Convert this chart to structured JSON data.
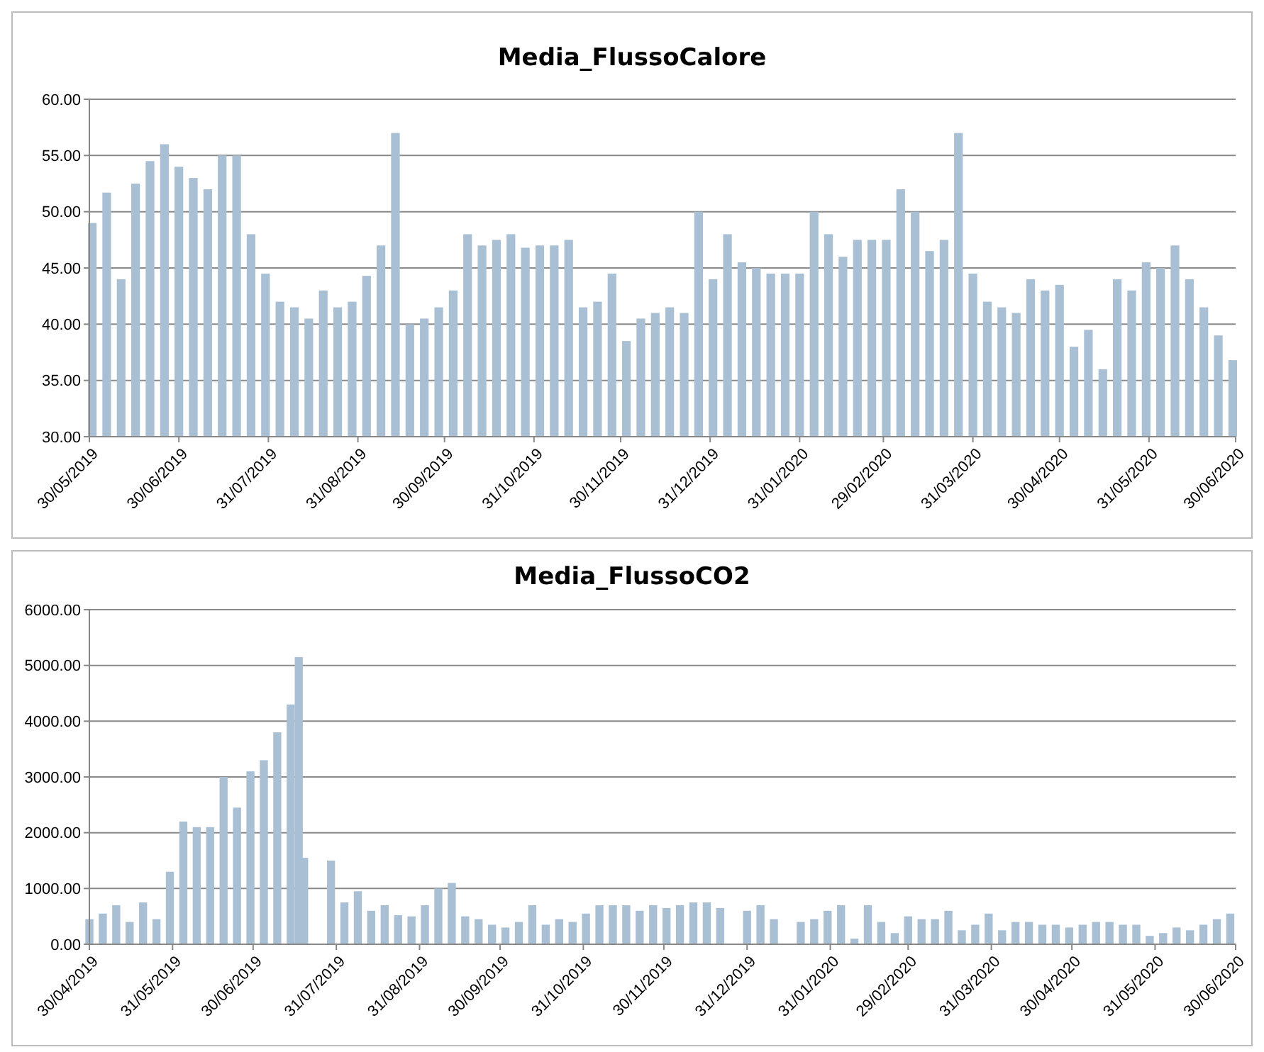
{
  "chart_data": [
    {
      "type": "bar",
      "title": "Media_FlussoCalore",
      "color": "#a9bfd3",
      "grid": "y",
      "xlim": [
        "2019-05-30",
        "2020-06-30"
      ],
      "xticks": [
        {
          "value": "2019-05-30",
          "label": "30/05/2019"
        },
        {
          "value": "2019-06-30",
          "label": "30/06/2019"
        },
        {
          "value": "2019-07-31",
          "label": "31/07/2019"
        },
        {
          "value": "2019-08-31",
          "label": "31/08/2019"
        },
        {
          "value": "2019-09-30",
          "label": "30/09/2019"
        },
        {
          "value": "2019-10-31",
          "label": "31/10/2019"
        },
        {
          "value": "2019-11-30",
          "label": "30/11/2019"
        },
        {
          "value": "2019-12-31",
          "label": "31/12/2019"
        },
        {
          "value": "2020-01-31",
          "label": "31/01/2020"
        },
        {
          "value": "2020-02-29",
          "label": "29/02/2020"
        },
        {
          "value": "2020-03-31",
          "label": "31/03/2020"
        },
        {
          "value": "2020-04-30",
          "label": "30/04/2020"
        },
        {
          "value": "2020-05-31",
          "label": "31/05/2020"
        },
        {
          "value": "2020-06-30",
          "label": "30/06/2020"
        }
      ],
      "ylim": [
        30,
        60
      ],
      "yticks": [
        {
          "value": 30,
          "label": "30.00"
        },
        {
          "value": 35,
          "label": "35.00"
        },
        {
          "value": 40,
          "label": "40.00"
        },
        {
          "value": 45,
          "label": "45.00"
        },
        {
          "value": 50,
          "label": "50.00"
        },
        {
          "value": 55,
          "label": "55.00"
        },
        {
          "value": 60,
          "label": "60.00"
        }
      ],
      "x": [
        "2019-05-31",
        "2019-06-05",
        "2019-06-10",
        "2019-06-15",
        "2019-06-20",
        "2019-06-25",
        "2019-06-30",
        "2019-07-05",
        "2019-07-10",
        "2019-07-15",
        "2019-07-20",
        "2019-07-25",
        "2019-07-30",
        "2019-08-04",
        "2019-08-09",
        "2019-08-14",
        "2019-08-19",
        "2019-08-24",
        "2019-08-29",
        "2019-09-03",
        "2019-09-08",
        "2019-09-13",
        "2019-09-18",
        "2019-09-23",
        "2019-09-28",
        "2019-10-03",
        "2019-10-08",
        "2019-10-13",
        "2019-10-18",
        "2019-10-23",
        "2019-10-28",
        "2019-11-02",
        "2019-11-07",
        "2019-11-12",
        "2019-11-17",
        "2019-11-22",
        "2019-11-27",
        "2019-12-02",
        "2019-12-07",
        "2019-12-12",
        "2019-12-17",
        "2019-12-22",
        "2019-12-27",
        "2020-01-01",
        "2020-01-06",
        "2020-01-11",
        "2020-01-16",
        "2020-01-21",
        "2020-01-26",
        "2020-01-31",
        "2020-02-05",
        "2020-02-10",
        "2020-02-15",
        "2020-02-20",
        "2020-02-25",
        "2020-03-01",
        "2020-03-06",
        "2020-03-11",
        "2020-03-16",
        "2020-03-21",
        "2020-03-26",
        "2020-03-31",
        "2020-04-05",
        "2020-04-10",
        "2020-04-15",
        "2020-04-20",
        "2020-04-25",
        "2020-04-30",
        "2020-05-05",
        "2020-05-10",
        "2020-05-15",
        "2020-05-20",
        "2020-05-25",
        "2020-05-30",
        "2020-06-04",
        "2020-06-09",
        "2020-06-14",
        "2020-06-19",
        "2020-06-24",
        "2020-06-29"
      ],
      "values": [
        49,
        51.7,
        44,
        52.5,
        54.5,
        56,
        54,
        53,
        52,
        55,
        55,
        48,
        44.5,
        42,
        41.5,
        40.5,
        43,
        41.5,
        42,
        44.3,
        47,
        57,
        40,
        40.5,
        41.5,
        43,
        48,
        47,
        47.5,
        48,
        46.8,
        47,
        47,
        47.5,
        41.5,
        42,
        44.5,
        38.5,
        40.5,
        41,
        41.5,
        41,
        50,
        44,
        48,
        45.5,
        45,
        44.5,
        44.5,
        44.5,
        50,
        48,
        46,
        47.5,
        47.5,
        47.5,
        52,
        50,
        46.5,
        47.5,
        57,
        44.5,
        42,
        41.5,
        41,
        44,
        43,
        43.5,
        38,
        39.5,
        36,
        44,
        43,
        45.5,
        45,
        47,
        44,
        41.5,
        39,
        36.8
      ]
    },
    {
      "type": "bar",
      "title": "Media_FlussoCO2",
      "color": "#a9bfd3",
      "grid": "y",
      "xlim": [
        "2019-04-30",
        "2020-06-30"
      ],
      "xticks": [
        {
          "value": "2019-04-30",
          "label": "30/04/2019"
        },
        {
          "value": "2019-05-31",
          "label": "31/05/2019"
        },
        {
          "value": "2019-06-30",
          "label": "30/06/2019"
        },
        {
          "value": "2019-07-31",
          "label": "31/07/2019"
        },
        {
          "value": "2019-08-31",
          "label": "31/08/2019"
        },
        {
          "value": "2019-09-30",
          "label": "30/09/2019"
        },
        {
          "value": "2019-10-31",
          "label": "31/10/2019"
        },
        {
          "value": "2019-11-30",
          "label": "30/11/2019"
        },
        {
          "value": "2019-12-31",
          "label": "31/12/2019"
        },
        {
          "value": "2020-01-31",
          "label": "31/01/2020"
        },
        {
          "value": "2020-02-29",
          "label": "29/02/2020"
        },
        {
          "value": "2020-03-31",
          "label": "31/03/2020"
        },
        {
          "value": "2020-04-30",
          "label": "30/04/2020"
        },
        {
          "value": "2020-05-31",
          "label": "31/05/2020"
        },
        {
          "value": "2020-06-30",
          "label": "30/06/2020"
        }
      ],
      "ylim": [
        0,
        6000
      ],
      "yticks": [
        {
          "value": 0,
          "label": "0.00"
        },
        {
          "value": 1000,
          "label": "1000.00"
        },
        {
          "value": 2000,
          "label": "2000.00"
        },
        {
          "value": 3000,
          "label": "3000.00"
        },
        {
          "value": 4000,
          "label": "4000.00"
        },
        {
          "value": 5000,
          "label": "5000.00"
        },
        {
          "value": 6000,
          "label": "6000.00"
        }
      ],
      "x": [
        "2019-04-30",
        "2019-05-05",
        "2019-05-10",
        "2019-05-15",
        "2019-05-20",
        "2019-05-25",
        "2019-05-30",
        "2019-06-04",
        "2019-06-09",
        "2019-06-14",
        "2019-06-19",
        "2019-06-24",
        "2019-06-29",
        "2019-07-04",
        "2019-07-09",
        "2019-07-14",
        "2019-07-17",
        "2019-07-19",
        "2019-07-29",
        "2019-08-03",
        "2019-08-08",
        "2019-08-13",
        "2019-08-18",
        "2019-08-23",
        "2019-08-28",
        "2019-09-02",
        "2019-09-07",
        "2019-09-12",
        "2019-09-17",
        "2019-09-22",
        "2019-09-27",
        "2019-10-02",
        "2019-10-07",
        "2019-10-12",
        "2019-10-17",
        "2019-10-22",
        "2019-10-27",
        "2019-11-01",
        "2019-11-06",
        "2019-11-11",
        "2019-11-16",
        "2019-11-21",
        "2019-11-26",
        "2019-12-01",
        "2019-12-06",
        "2019-12-11",
        "2019-12-16",
        "2019-12-21",
        "2019-12-31",
        "2020-01-05",
        "2020-01-10",
        "2020-01-20",
        "2020-01-25",
        "2020-01-30",
        "2020-02-04",
        "2020-02-09",
        "2020-02-14",
        "2020-02-19",
        "2020-02-24",
        "2020-02-29",
        "2020-03-05",
        "2020-03-10",
        "2020-03-15",
        "2020-03-20",
        "2020-03-25",
        "2020-03-30",
        "2020-04-04",
        "2020-04-09",
        "2020-04-14",
        "2020-04-19",
        "2020-04-24",
        "2020-04-29",
        "2020-05-04",
        "2020-05-09",
        "2020-05-14",
        "2020-05-19",
        "2020-05-24",
        "2020-05-29",
        "2020-06-03",
        "2020-06-08",
        "2020-06-13",
        "2020-06-18",
        "2020-06-23",
        "2020-06-28"
      ],
      "values": [
        450,
        550,
        700,
        400,
        750,
        450,
        1300,
        2200,
        2100,
        2100,
        3000,
        2450,
        3100,
        3300,
        3800,
        4300,
        5150,
        1550,
        1500,
        750,
        950,
        600,
        700,
        520,
        500,
        700,
        1000,
        1100,
        500,
        450,
        350,
        300,
        400,
        700,
        350,
        450,
        400,
        550,
        700,
        700,
        700,
        600,
        700,
        650,
        700,
        750,
        750,
        650,
        600,
        700,
        450,
        400,
        450,
        600,
        700,
        100,
        700,
        400,
        200,
        500,
        450,
        450,
        600,
        250,
        350,
        550,
        250,
        400,
        400,
        350,
        350,
        300,
        350,
        400,
        400,
        350,
        350,
        150,
        200,
        300,
        250,
        350,
        450,
        550
      ]
    }
  ]
}
